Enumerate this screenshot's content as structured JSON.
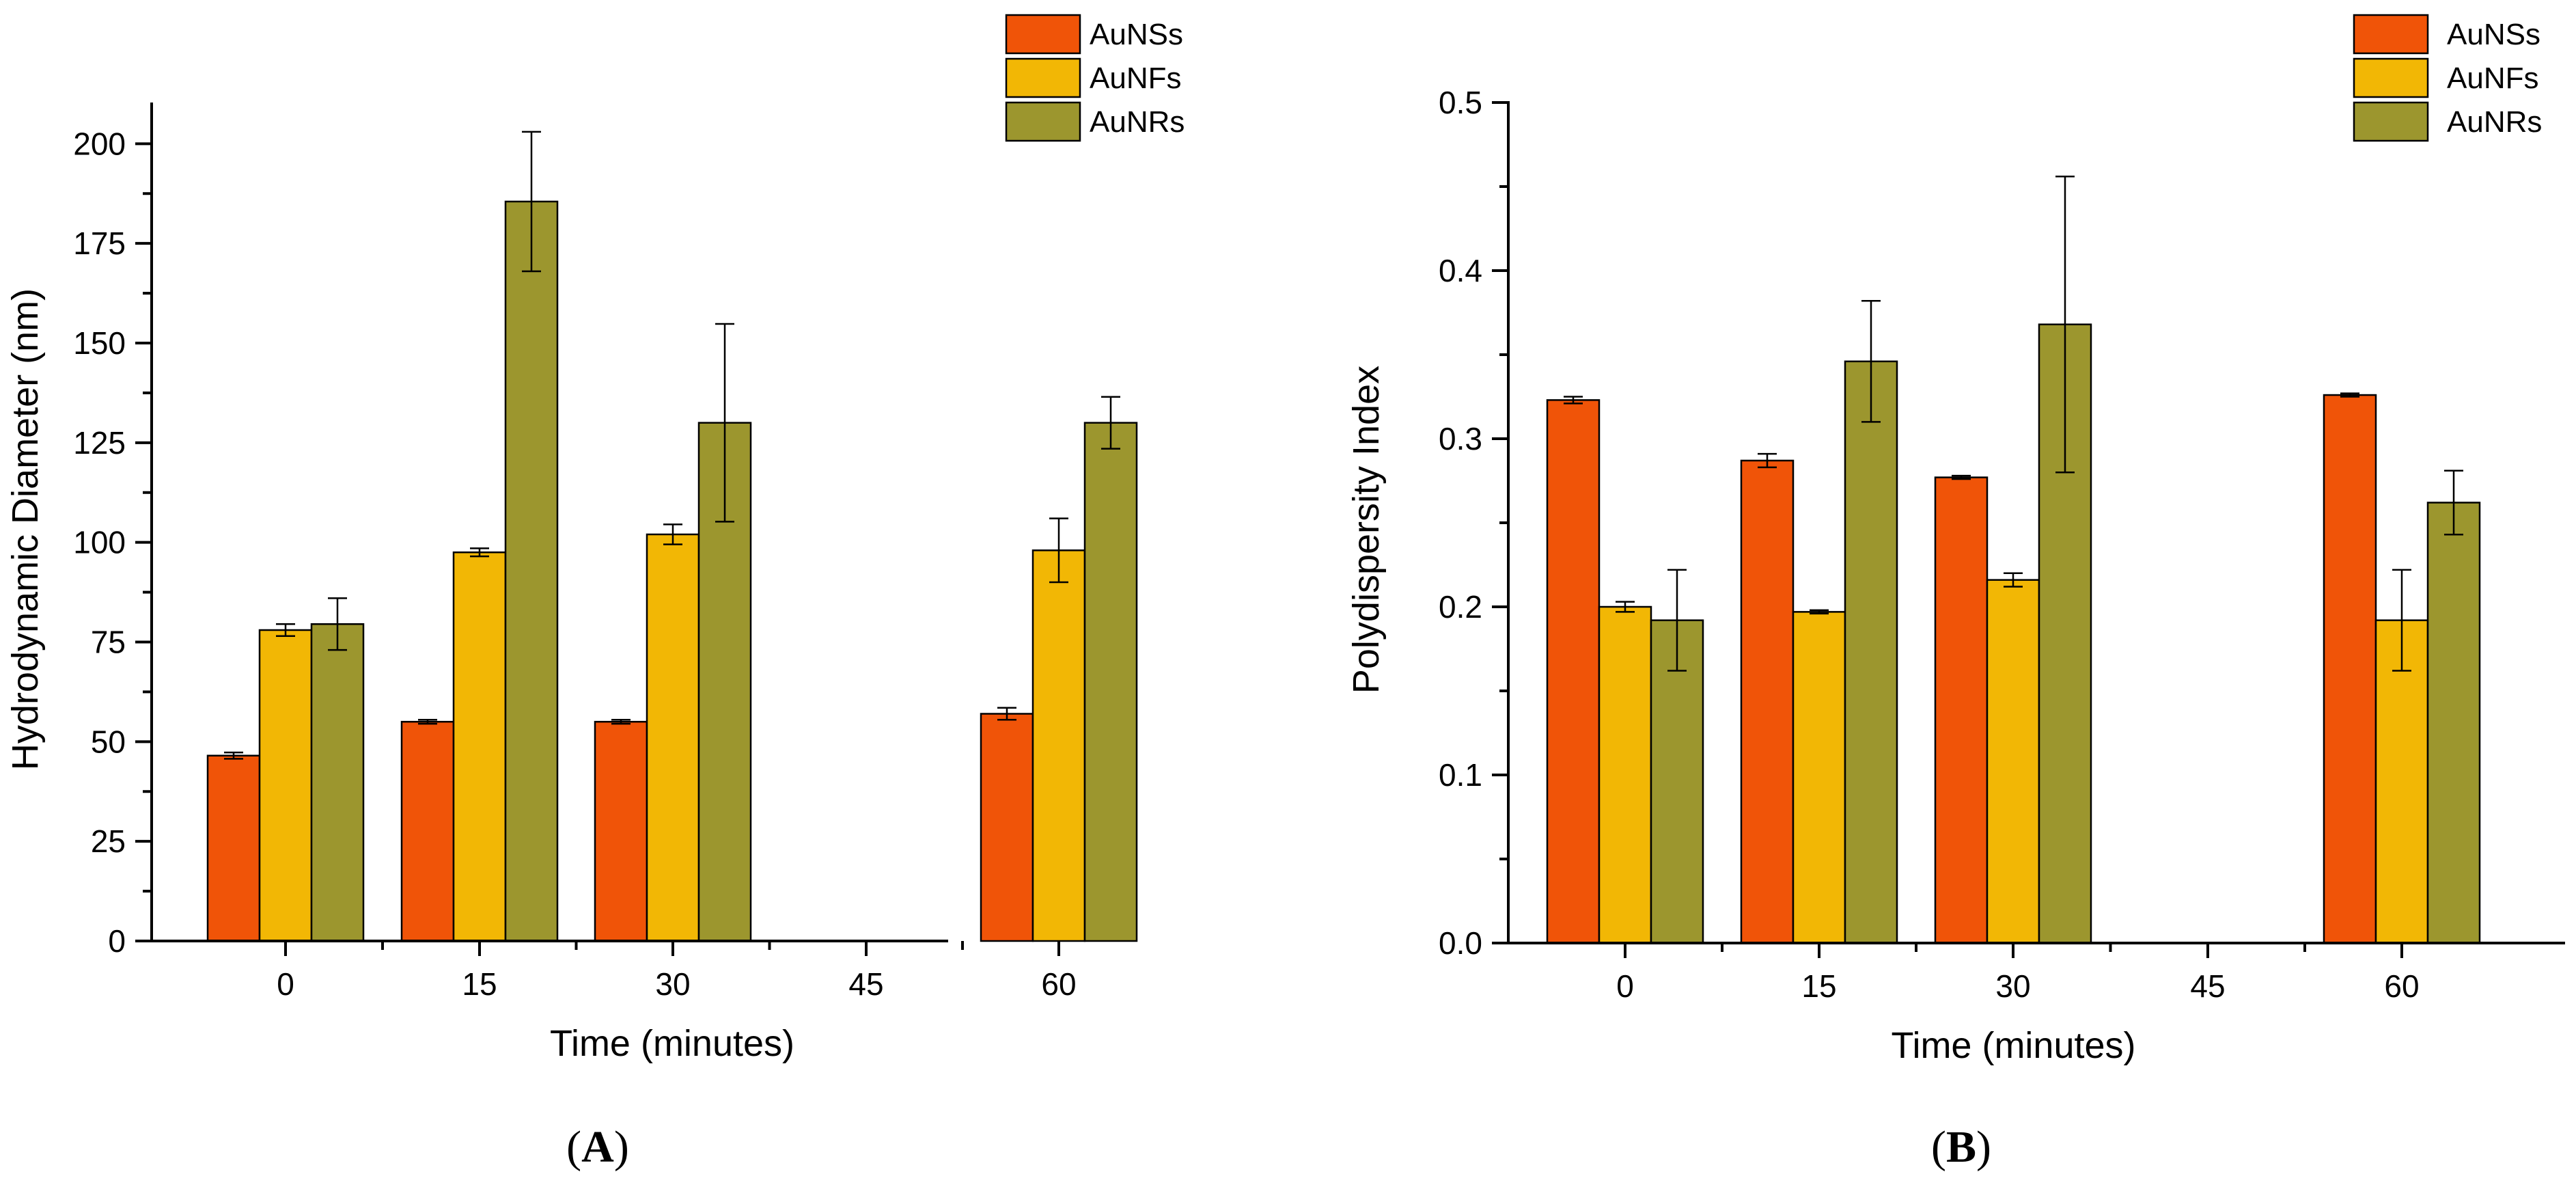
{
  "colors": {
    "AuNSs": "#F05408",
    "AuNFs": "#F2B705",
    "AuNRs": "#9C962E"
  },
  "chart_data": [
    {
      "type": "bar",
      "panel_label": [
        "(",
        "A",
        ")"
      ],
      "xlabel": "Time (minutes)",
      "ylabel": "Hydrodynamic Diameter (nm)",
      "categories": [
        "0",
        "15",
        "30",
        "45",
        "60"
      ],
      "ylim": [
        0,
        210
      ],
      "yticks": [
        0,
        25,
        50,
        75,
        100,
        125,
        150,
        175,
        200
      ],
      "ytick_labels": [
        "0",
        "25",
        "50",
        "75",
        "100",
        "125",
        "150",
        "175",
        "200"
      ],
      "legend_position": "top-right",
      "series": [
        {
          "name": "AuNSs",
          "values": [
            46.5,
            55,
            55,
            null,
            57
          ],
          "errors": [
            0.8,
            0.5,
            0.5,
            null,
            1.5
          ]
        },
        {
          "name": "AuNFs",
          "values": [
            78,
            97.5,
            102,
            null,
            98
          ],
          "errors": [
            1.5,
            1,
            2.5,
            null,
            8
          ]
        },
        {
          "name": "AuNRs",
          "values": [
            79.5,
            185.5,
            130,
            null,
            130
          ],
          "errors": [
            6.5,
            17.5,
            24.8,
            null,
            6.5
          ]
        }
      ]
    },
    {
      "type": "bar",
      "panel_label": [
        "(",
        "B",
        ")"
      ],
      "xlabel": "Time (minutes)",
      "ylabel": "Polydispersity Index",
      "categories": [
        "0",
        "15",
        "30",
        "45",
        "60"
      ],
      "ylim": [
        0,
        0.5
      ],
      "yticks": [
        0,
        0.1,
        0.2,
        0.3,
        0.4,
        0.5
      ],
      "ytick_labels": [
        "0.0",
        "0.1",
        "0.2",
        "0.3",
        "0.4",
        "0.5"
      ],
      "legend_position": "top-right",
      "series": [
        {
          "name": "AuNSs",
          "values": [
            0.323,
            0.287,
            0.277,
            null,
            0.326
          ],
          "errors": [
            0.002,
            0.004,
            0.001,
            null,
            0.001
          ]
        },
        {
          "name": "AuNFs",
          "values": [
            0.2,
            0.197,
            0.216,
            null,
            0.192
          ],
          "errors": [
            0.003,
            0.001,
            0.004,
            null,
            0.03
          ]
        },
        {
          "name": "AuNRs",
          "values": [
            0.192,
            0.346,
            0.368,
            null,
            0.262
          ],
          "errors": [
            0.03,
            0.036,
            0.088,
            null,
            0.019
          ]
        }
      ]
    }
  ]
}
